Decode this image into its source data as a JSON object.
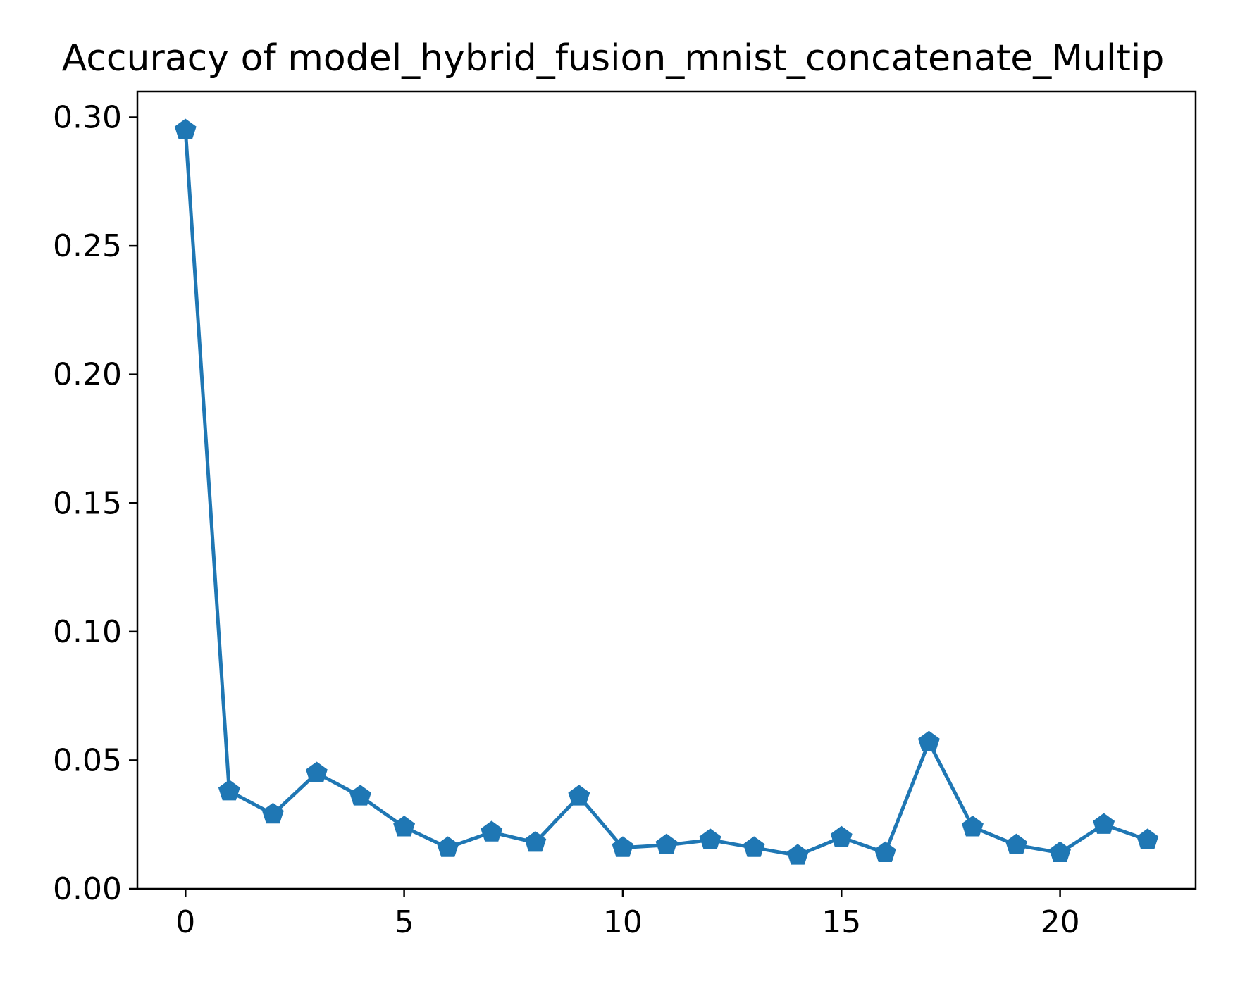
{
  "chart_data": {
    "type": "line",
    "title": "Accuracy of model_hybrid_fusion_mnist_concatenate_Multip",
    "xlabel": "",
    "ylabel": "",
    "xlim": [
      -1.1,
      23.1
    ],
    "ylim": [
      0.0,
      0.31
    ],
    "x_ticks": [
      0,
      5,
      10,
      15,
      20
    ],
    "x_tick_labels": [
      "0",
      "5",
      "10",
      "15",
      "20"
    ],
    "y_ticks": [
      0.0,
      0.05,
      0.1,
      0.15,
      0.2,
      0.25,
      0.3
    ],
    "y_tick_labels": [
      "0.00",
      "0.05",
      "0.10",
      "0.15",
      "0.20",
      "0.25",
      "0.30"
    ],
    "grid": false,
    "marker": "pentagon",
    "color": "#1f77b4",
    "series": [
      {
        "x": [
          0,
          1,
          2,
          3,
          4,
          5,
          6,
          7,
          8,
          9,
          10,
          11,
          12,
          13,
          14,
          15,
          16,
          17,
          18,
          19,
          20,
          21,
          22
        ],
        "values": [
          0.295,
          0.038,
          0.029,
          0.045,
          0.036,
          0.024,
          0.016,
          0.022,
          0.018,
          0.036,
          0.016,
          0.017,
          0.019,
          0.016,
          0.013,
          0.02,
          0.014,
          0.057,
          0.024,
          0.017,
          0.014,
          0.025,
          0.019
        ]
      }
    ]
  }
}
